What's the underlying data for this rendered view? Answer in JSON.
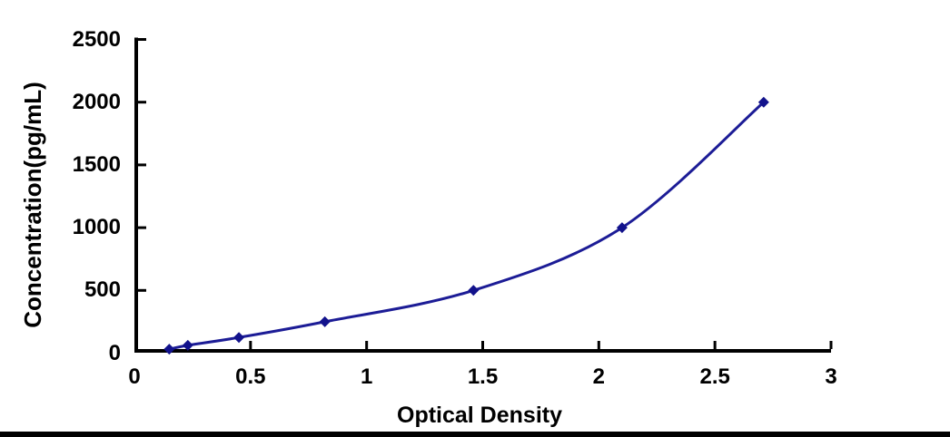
{
  "chart_data": {
    "type": "line",
    "title": "",
    "xlabel": "Optical Density",
    "ylabel": "Concentration(pg/mL)",
    "x": [
      0.15,
      0.23,
      0.45,
      0.82,
      1.46,
      2.1,
      2.71
    ],
    "y": [
      31.25,
      62.5,
      125,
      250,
      500,
      1000,
      2000
    ],
    "xlim": [
      0,
      3
    ],
    "ylim": [
      0,
      2500
    ],
    "x_ticks": [
      0,
      0.5,
      1,
      1.5,
      2,
      2.5,
      3
    ],
    "x_tick_labels": [
      "0",
      "0.5",
      "1",
      "1.5",
      "2",
      "2.5",
      "3"
    ],
    "y_ticks": [
      0,
      500,
      1000,
      1500,
      2000,
      2500
    ],
    "y_tick_labels": [
      "0",
      "500",
      "1000",
      "1500",
      "2000",
      "2500"
    ],
    "grid": false,
    "legend": "none",
    "marker": "diamond",
    "smooth": true,
    "colors": {
      "line": "#1C1C96",
      "marker": "#12128C",
      "axis": "#000000",
      "text": "#000000",
      "background": "#FFFFFF",
      "bottom_bar": "#000000"
    }
  }
}
